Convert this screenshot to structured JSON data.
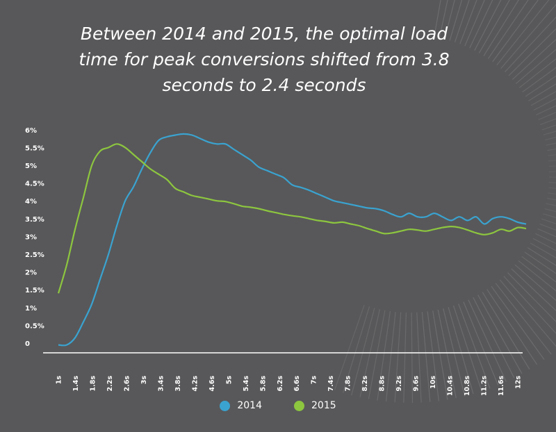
{
  "title_lines": [
    "Between 2014 and 2015, the optimal load",
    "time for peak conversions shifted from 3.8",
    "seconds to 2.4 seconds"
  ],
  "chart_data": {
    "type": "line",
    "title": "Between 2014 and 2015, the optimal load time for peak conversions shifted from 3.8 seconds to 2.4 seconds",
    "xlabel": "",
    "ylabel": "",
    "ylim": [
      0,
      6
    ],
    "xlim": [
      1,
      12.2
    ],
    "x_ticks": [
      "1s",
      "1.4s",
      "1.8s",
      "2.2s",
      "2.6s",
      "3s",
      "3.4s",
      "3.8s",
      "4.2s",
      "4.6s",
      "5s",
      "5.4s",
      "5.8s",
      "6.2s",
      "6.6s",
      "7s",
      "7.4s",
      "7.8s",
      "8.2s",
      "8.8s",
      "9.2s",
      "9.6s",
      "10s",
      "10.4s",
      "10.8s",
      "11.2s",
      "11.6s",
      "12s"
    ],
    "y_ticks": [
      "0",
      "0.5%",
      "1%",
      "1.5%",
      "2%",
      "2.5%",
      "3%",
      "3.5%",
      "4%",
      "4.5%",
      "5%",
      "5.5%",
      "6%"
    ],
    "grid": false,
    "legend_position": "bottom-center",
    "series": [
      {
        "name": "2014",
        "color": "#3aa3d0",
        "x": [
          1.0,
          1.2,
          1.4,
          1.6,
          1.8,
          2.0,
          2.2,
          2.4,
          2.6,
          2.8,
          3.0,
          3.2,
          3.4,
          3.6,
          3.8,
          4.0,
          4.2,
          4.4,
          4.6,
          4.8,
          5.0,
          5.2,
          5.4,
          5.6,
          5.8,
          6.0,
          6.2,
          6.4,
          6.6,
          6.8,
          7.0,
          7.2,
          7.4,
          7.6,
          7.8,
          8.0,
          8.2,
          8.4,
          8.6,
          8.8,
          9.0,
          9.2,
          9.4,
          9.6,
          9.8,
          10.0,
          10.2,
          10.4,
          10.6,
          10.8,
          11.0,
          11.2,
          11.4,
          11.6,
          11.8,
          12.0,
          12.2
        ],
        "values": [
          -0.05,
          -0.05,
          0.15,
          0.6,
          1.1,
          1.8,
          2.5,
          3.3,
          4.0,
          4.4,
          4.9,
          5.35,
          5.7,
          5.8,
          5.85,
          5.88,
          5.85,
          5.75,
          5.65,
          5.6,
          5.6,
          5.45,
          5.3,
          5.15,
          4.95,
          4.85,
          4.75,
          4.65,
          4.45,
          4.38,
          4.3,
          4.2,
          4.1,
          4.0,
          3.95,
          3.9,
          3.85,
          3.8,
          3.78,
          3.72,
          3.62,
          3.55,
          3.65,
          3.55,
          3.55,
          3.65,
          3.55,
          3.45,
          3.55,
          3.45,
          3.55,
          3.35,
          3.5,
          3.55,
          3.5,
          3.4,
          3.35
        ]
      },
      {
        "name": "2015",
        "color": "#8dc63f",
        "x": [
          1.0,
          1.2,
          1.4,
          1.6,
          1.8,
          2.0,
          2.2,
          2.4,
          2.6,
          2.8,
          3.0,
          3.2,
          3.4,
          3.6,
          3.8,
          4.0,
          4.2,
          4.4,
          4.6,
          4.8,
          5.0,
          5.2,
          5.4,
          5.6,
          5.8,
          6.0,
          6.2,
          6.4,
          6.6,
          6.8,
          7.0,
          7.2,
          7.4,
          7.6,
          7.8,
          8.0,
          8.2,
          8.4,
          8.6,
          8.8,
          9.0,
          9.2,
          9.4,
          9.6,
          9.8,
          10.0,
          10.2,
          10.4,
          10.6,
          10.8,
          11.0,
          11.2,
          11.4,
          11.6,
          11.8,
          12.0,
          12.2
        ],
        "values": [
          1.4,
          2.2,
          3.2,
          4.1,
          5.0,
          5.4,
          5.5,
          5.6,
          5.5,
          5.3,
          5.1,
          4.9,
          4.75,
          4.6,
          4.35,
          4.25,
          4.15,
          4.1,
          4.05,
          4.0,
          3.98,
          3.92,
          3.85,
          3.82,
          3.78,
          3.72,
          3.67,
          3.62,
          3.58,
          3.55,
          3.5,
          3.45,
          3.42,
          3.38,
          3.4,
          3.35,
          3.3,
          3.22,
          3.15,
          3.08,
          3.1,
          3.15,
          3.2,
          3.18,
          3.15,
          3.2,
          3.25,
          3.28,
          3.25,
          3.18,
          3.1,
          3.05,
          3.1,
          3.2,
          3.15,
          3.25,
          3.22
        ]
      }
    ]
  }
}
